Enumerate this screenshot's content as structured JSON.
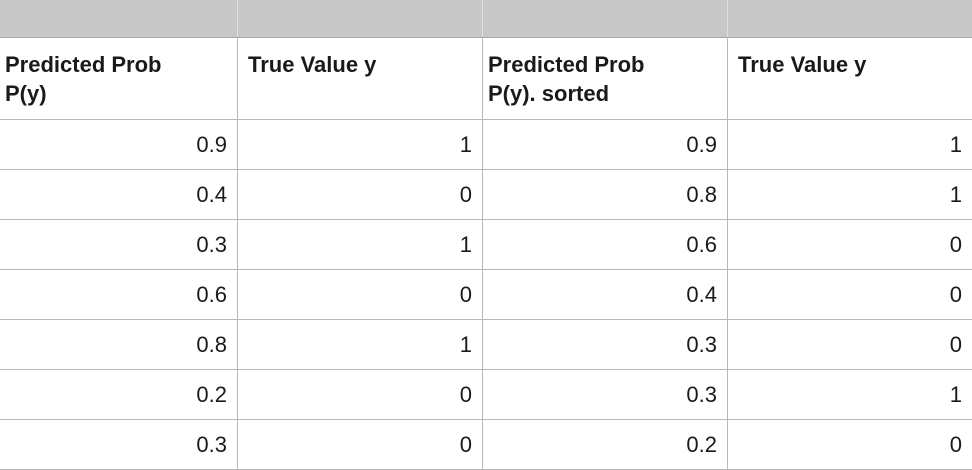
{
  "table": {
    "headers": [
      "Predicted Prob\nP(y)",
      "True Value y",
      "Predicted Prob\nP(y).  sorted",
      "True Value y"
    ],
    "rows": [
      [
        "0.9",
        "1",
        "0.9",
        "1"
      ],
      [
        "0.4",
        "0",
        "0.8",
        "1"
      ],
      [
        "0.3",
        "1",
        "0.6",
        "0"
      ],
      [
        "0.6",
        "0",
        "0.4",
        "0"
      ],
      [
        "0.8",
        "1",
        "0.3",
        "0"
      ],
      [
        "0.2",
        "0",
        "0.3",
        "1"
      ],
      [
        "0.3",
        "0",
        "0.2",
        "0"
      ]
    ]
  },
  "colors": {
    "header_strip": "#c8c8c8",
    "gridline": "#b8b8b8",
    "background": "#ffffff",
    "text": "#1a1a1a"
  }
}
